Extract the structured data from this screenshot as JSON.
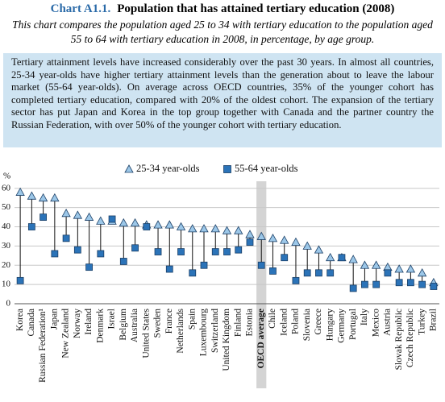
{
  "chart_data": {
    "type": "dot-range",
    "chart_number": "Chart A1.1.",
    "title": "Population that has attained tertiary education (2008)",
    "subtitle": "This chart compares the population aged 25 to 34 with tertiary education to the population aged 55 to 64 with tertiary education in 2008, in percentage, by age group.",
    "summary": "Tertiary attainment levels have increased considerably over the past 30 years. In almost all countries, 25-34 year-olds have higher tertiary attainment levels than the generation about to leave the labour market (55-64 year-olds). On average across OECD countries, 35% of the younger cohort has completed tertiary education, compared with 20% of the oldest cohort. The expansion of the tertiary sector has put Japan and Korea in the top group together with Canada and the partner country the Russian Federation, with over 50% of the younger cohort with tertiary education.",
    "y_label": "%",
    "categories": [
      "Korea",
      "Canada",
      "Russian Federation¹",
      "Japan",
      "New Zealand",
      "Norway",
      "Ireland",
      "Denmark",
      "Israel",
      "Belgium",
      "Australia",
      "United States",
      "Sweden",
      "France",
      "Netherlands",
      "Spain",
      "Luxembourg",
      "Switzerland",
      "United Kingdom",
      "Finland",
      "Estonia",
      "OECD average",
      "Chile",
      "Iceland",
      "Poland",
      "Slovenia",
      "Greece",
      "Hungary",
      "Germany",
      "Portugal",
      "Italy",
      "Mexico",
      "Austria",
      "Slovak Republic",
      "Czech Republic",
      "Turkey",
      "Brazil"
    ],
    "series": [
      {
        "name": "25-34 year-olds",
        "marker": "triangle",
        "color": "#9cc7e8",
        "values": [
          58,
          56,
          55,
          55,
          47,
          46,
          45,
          43,
          43,
          42,
          42,
          41,
          41,
          41,
          40,
          39,
          39,
          39,
          38,
          38,
          36,
          35,
          34,
          33,
          32,
          30,
          28,
          24,
          24,
          23,
          20,
          20,
          19,
          18,
          18,
          16,
          11
        ]
      },
      {
        "name": "55-64 year-olds",
        "marker": "square",
        "color": "#2b73b8",
        "values": [
          12,
          40,
          45,
          26,
          34,
          28,
          19,
          26,
          44,
          22,
          29,
          40,
          27,
          18,
          27,
          16,
          20,
          27,
          27,
          28,
          32,
          20,
          17,
          24,
          12,
          16,
          16,
          16,
          24,
          8,
          10,
          10,
          16,
          11,
          11,
          10,
          9
        ]
      }
    ],
    "highlight_category": "OECD average",
    "ylim": [
      0,
      62
    ],
    "yticks": [
      0,
      10,
      20,
      30,
      40,
      50,
      60
    ],
    "grid": true
  }
}
